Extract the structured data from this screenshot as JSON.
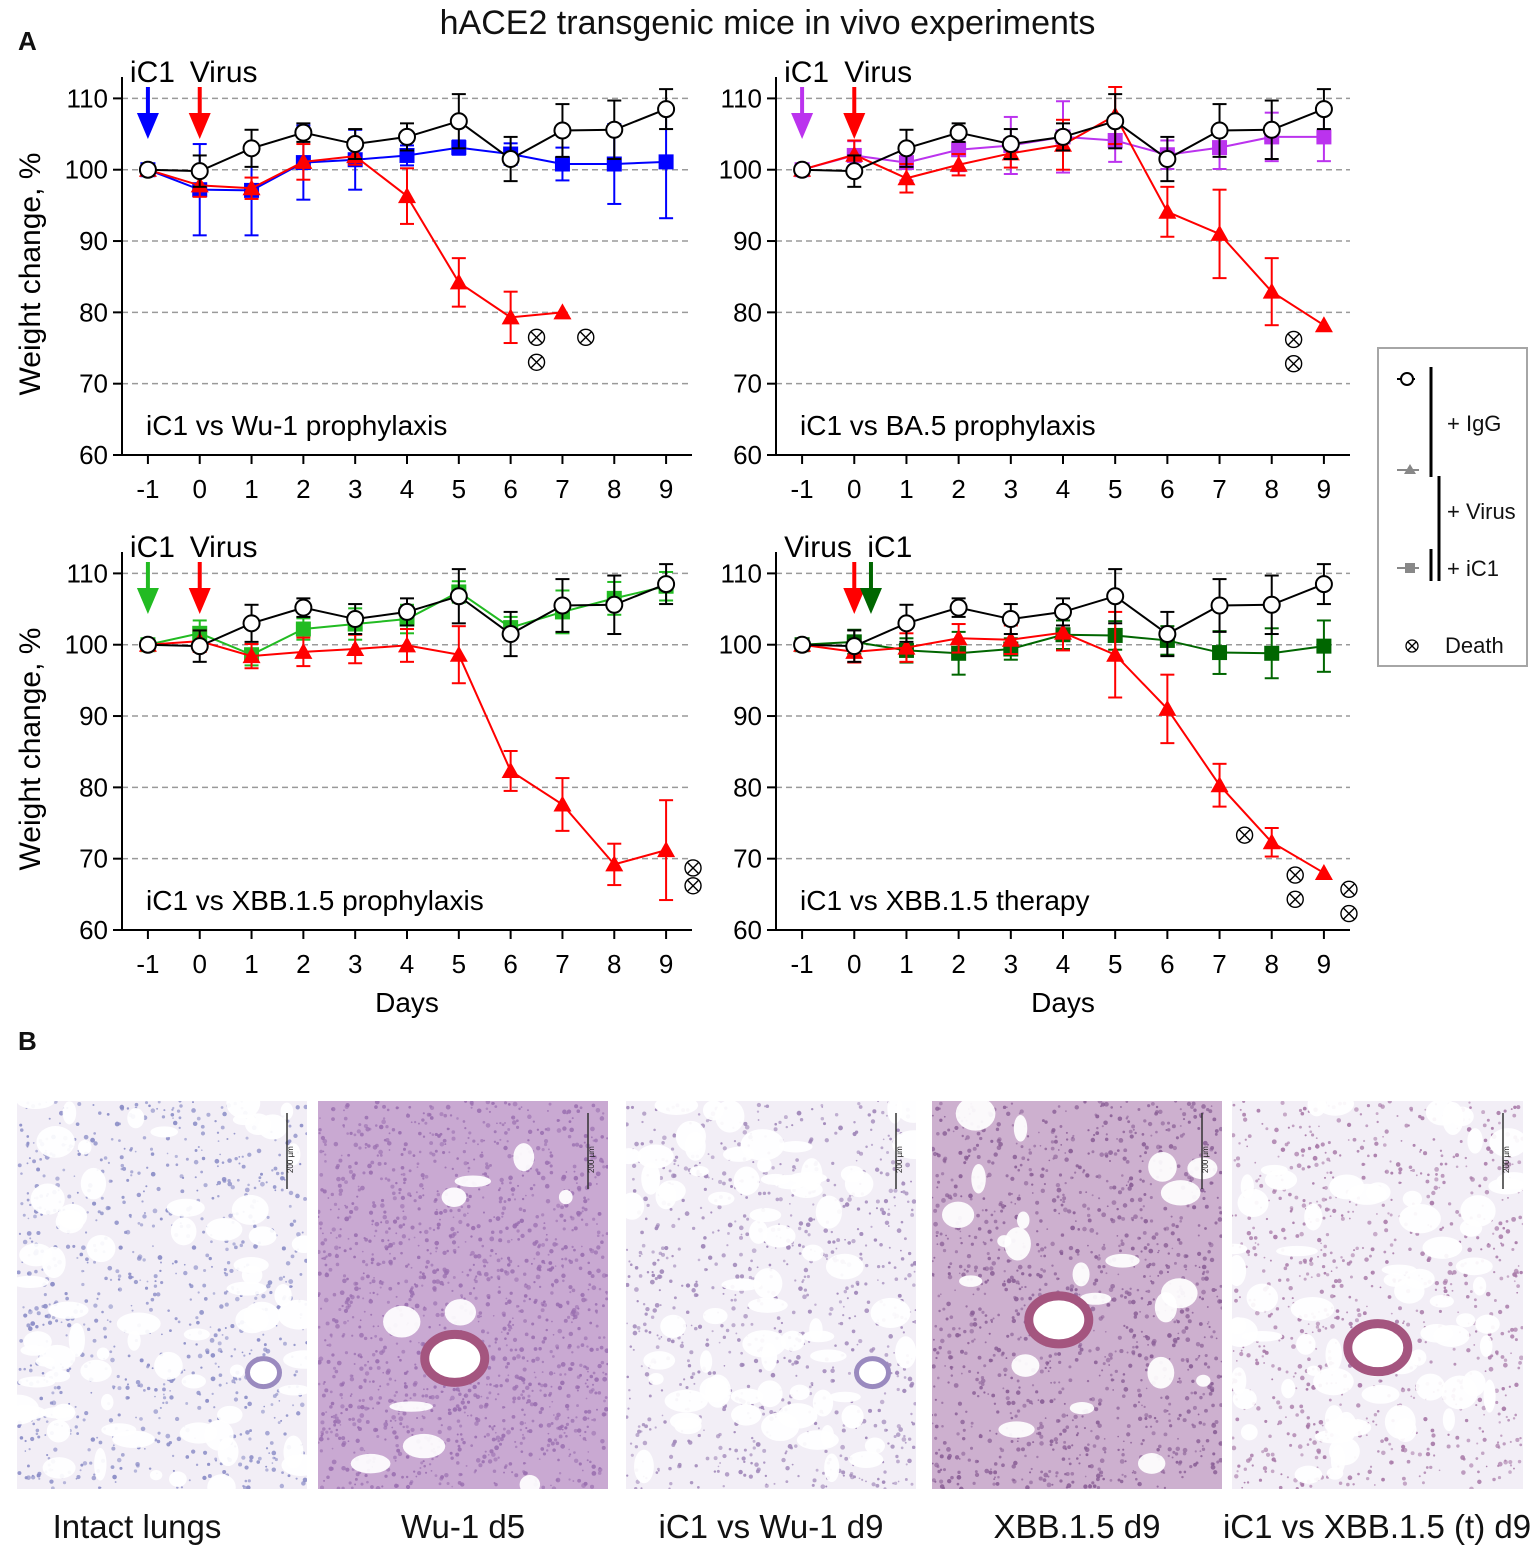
{
  "title": "hACE2 transgenic mice in vivo experiments",
  "panel_a_label": "A",
  "panel_b_label": "B",
  "colors": {
    "igg": "#000000",
    "virus": "#ff0000",
    "gridline": "#9a9a9a",
    "ic1_wu1": "#0000ff",
    "ic1_ba5": "#bb33ee",
    "ic1_xbb_prophylaxis": "#22bb22",
    "ic1_xbb_therapy": "#006600"
  },
  "legend": {
    "entries": [
      {
        "symbol": "open-circle",
        "label": "+ IgG"
      },
      {
        "symbol": "triangle",
        "label": "+ Virus"
      },
      {
        "symbol": "square",
        "label": "+ iC1"
      },
      {
        "symbol": "death-mark",
        "label": "Death"
      }
    ]
  },
  "chart_data": [
    {
      "type": "line",
      "name": "panel-top-left",
      "annotation": "iC1 vs Wu-1 prophylaxis",
      "top_labels": [
        "iC1",
        "Virus"
      ],
      "arrows": [
        {
          "day": -1,
          "color": "#0000ff"
        },
        {
          "day": 0,
          "color": "#ff0000"
        }
      ],
      "xlabel": "",
      "ylabel": "Weight change, %",
      "x": [
        -1,
        0,
        1,
        2,
        3,
        4,
        5,
        6,
        7,
        8,
        9
      ],
      "xlim": [
        -1.5,
        9.5
      ],
      "ylim": [
        60,
        113
      ],
      "yticks": [
        60,
        70,
        80,
        90,
        100,
        110
      ],
      "gridlines": [
        70,
        80,
        90,
        100,
        110
      ],
      "series": [
        {
          "name": "IgG",
          "marker": "circle",
          "color": "#000000",
          "values": [
            100,
            99.8,
            103,
            105.2,
            103.6,
            104.6,
            106.8,
            101.5,
            105.5,
            105.6,
            108.5
          ],
          "errors": [
            0.6,
            2.2,
            2.6,
            1.3,
            2.1,
            1.9,
            3.8,
            3.1,
            3.7,
            4.1,
            2.8
          ]
        },
        {
          "name": "iC1 + Virus",
          "marker": "square",
          "color": "#0000ff",
          "values": [
            100,
            97.2,
            97.1,
            101,
            101.4,
            102,
            103.1,
            102.2,
            100.8,
            100.8,
            101.1
          ],
          "errors": [
            0.6,
            6.4,
            6.3,
            5.2,
            4.2,
            1.4,
            1,
            1.5,
            2.3,
            5.6,
            7.9
          ]
        },
        {
          "name": "Virus",
          "marker": "triangle",
          "color": "#ff0000",
          "values": [
            100,
            97.8,
            97.4,
            101.1,
            101.9,
            96.3,
            84.2,
            79.3,
            80,
            null,
            null
          ],
          "errors": [
            0.5,
            1.6,
            1.5,
            2.5,
            1.2,
            3.9,
            3.4,
            3.6,
            0,
            null,
            null
          ]
        }
      ],
      "deaths": [
        {
          "day": 6.5,
          "y": 76.5
        },
        {
          "day": 6.5,
          "y": 73
        },
        {
          "day": 7.45,
          "y": 76.5
        }
      ]
    },
    {
      "type": "line",
      "name": "panel-top-right",
      "annotation": "iC1 vs BA.5 prophylaxis",
      "top_labels": [
        "iC1",
        "Virus"
      ],
      "arrows": [
        {
          "day": -1,
          "color": "#bb33ee"
        },
        {
          "day": 0,
          "color": "#ff0000"
        }
      ],
      "xlabel": "",
      "ylabel": "",
      "x": [
        -1,
        0,
        1,
        2,
        3,
        4,
        5,
        6,
        7,
        8,
        9
      ],
      "xlim": [
        -1.5,
        9.5
      ],
      "ylim": [
        60,
        113
      ],
      "yticks": [
        60,
        70,
        80,
        90,
        100,
        110
      ],
      "gridlines": [
        70,
        80,
        90,
        100,
        110
      ],
      "series": [
        {
          "name": "IgG",
          "marker": "circle",
          "color": "#000000",
          "values": [
            100,
            99.8,
            103,
            105.2,
            103.6,
            104.6,
            106.8,
            101.5,
            105.5,
            105.6,
            108.5
          ],
          "errors": [
            0.6,
            2.2,
            2.6,
            1.3,
            2.1,
            1.9,
            3.8,
            3.1,
            3.7,
            4.1,
            2.8
          ]
        },
        {
          "name": "iC1 + Virus",
          "marker": "square",
          "color": "#bb33ee",
          "values": [
            100,
            102,
            101,
            102.8,
            103.4,
            104.6,
            104.1,
            102.1,
            103.1,
            104.6,
            104.6
          ],
          "errors": [
            0.5,
            2,
            2.5,
            3,
            4,
            5,
            3,
            2,
            3,
            3.4,
            3.4
          ]
        },
        {
          "name": "Virus",
          "marker": "triangle",
          "color": "#ff0000",
          "values": [
            100,
            102.1,
            98.8,
            100.7,
            102.3,
            103.5,
            107.6,
            94.1,
            91,
            82.9,
            78.2
          ],
          "errors": [
            0.5,
            2,
            2,
            1.5,
            2,
            3.5,
            4,
            3.5,
            6.2,
            4.7,
            0
          ]
        }
      ],
      "deaths": [
        {
          "day": 8.42,
          "y": 76.2
        },
        {
          "day": 8.42,
          "y": 72.8
        }
      ]
    },
    {
      "type": "line",
      "name": "panel-bottom-left",
      "annotation": "iC1 vs XBB.1.5 prophylaxis",
      "top_labels": [
        "iC1",
        "Virus"
      ],
      "arrows": [
        {
          "day": -1,
          "color": "#22bb22"
        },
        {
          "day": 0,
          "color": "#ff0000"
        }
      ],
      "xlabel": "Days",
      "ylabel": "Weight change, %",
      "x": [
        -1,
        0,
        1,
        2,
        3,
        4,
        5,
        6,
        7,
        8,
        9
      ],
      "xlim": [
        -1.5,
        9.5
      ],
      "ylim": [
        60,
        113
      ],
      "yticks": [
        60,
        70,
        80,
        90,
        100,
        110
      ],
      "gridlines": [
        70,
        80,
        90,
        100,
        110
      ],
      "series": [
        {
          "name": "IgG",
          "marker": "circle",
          "color": "#000000",
          "values": [
            100,
            99.8,
            103,
            105.2,
            103.6,
            104.6,
            106.8,
            101.5,
            105.5,
            105.6,
            108.5
          ],
          "errors": [
            0.6,
            2.2,
            2.6,
            1.3,
            2.1,
            1.9,
            3.8,
            3.1,
            3.7,
            4.1,
            2.8
          ]
        },
        {
          "name": "iC1 + Virus",
          "marker": "square",
          "color": "#22bb22",
          "values": [
            100,
            101.6,
            98.6,
            102.2,
            102.9,
            103.6,
            107.4,
            102.4,
            104.6,
            106.5,
            108.2
          ],
          "errors": [
            0.5,
            1.8,
            1.5,
            1.5,
            2.2,
            2,
            1.5,
            1.5,
            3,
            2.3,
            2
          ]
        },
        {
          "name": "Virus",
          "marker": "triangle",
          "color": "#ff0000",
          "values": [
            100,
            100.5,
            98.4,
            99,
            99.4,
            99.9,
            98.6,
            82.3,
            77.6,
            69.2,
            71.2
          ],
          "errors": [
            0.5,
            1.5,
            1.7,
            2,
            2,
            2.3,
            4,
            2.8,
            3.7,
            2.9,
            7
          ]
        }
      ],
      "deaths": [
        {
          "day": 9.52,
          "y": 68.7
        },
        {
          "day": 9.52,
          "y": 66.2
        }
      ]
    },
    {
      "type": "line",
      "name": "panel-bottom-right",
      "annotation": "iC1 vs XBB.1.5 therapy",
      "top_labels": [
        "Virus",
        "iC1"
      ],
      "arrows": [
        {
          "day": 0,
          "color": "#ff0000"
        },
        {
          "day": 0.32,
          "color": "#006600"
        }
      ],
      "xlabel": "Days",
      "ylabel": "",
      "x": [
        -1,
        0,
        1,
        2,
        3,
        4,
        5,
        6,
        7,
        8,
        9
      ],
      "xlim": [
        -1.5,
        9.5
      ],
      "ylim": [
        60,
        113
      ],
      "yticks": [
        60,
        70,
        80,
        90,
        100,
        110
      ],
      "gridlines": [
        70,
        80,
        90,
        100,
        110
      ],
      "series": [
        {
          "name": "IgG",
          "marker": "circle",
          "color": "#000000",
          "values": [
            100,
            99.8,
            103,
            105.2,
            103.6,
            104.6,
            106.8,
            101.5,
            105.5,
            105.6,
            108.5
          ],
          "errors": [
            0.6,
            2.2,
            2.6,
            1.3,
            2.1,
            1.9,
            3.8,
            3.1,
            3.7,
            4.1,
            2.8
          ]
        },
        {
          "name": "iC1 + Virus",
          "marker": "square",
          "color": "#006600",
          "values": [
            100,
            100.4,
            99.2,
            98.8,
            99.4,
            101.4,
            101.3,
            100.6,
            98.9,
            98.8,
            99.8
          ],
          "errors": [
            0.5,
            1.7,
            1.7,
            3,
            1.5,
            2,
            2,
            2,
            3,
            3.5,
            3.6
          ]
        },
        {
          "name": "Virus",
          "marker": "triangle",
          "color": "#ff0000",
          "values": [
            100,
            99,
            99.6,
            100.9,
            100.7,
            101.7,
            98.6,
            91,
            80.3,
            72.3,
            68
          ]
        },
        {
          "name": "Virus-errors-only",
          "errors_for": "Virus",
          "errors": [
            0.5,
            1.5,
            2,
            2,
            2,
            2.5,
            6,
            4.8,
            3,
            2,
            0
          ]
        }
      ],
      "deaths": [
        {
          "day": 7.48,
          "y": 73.3
        },
        {
          "day": 8.45,
          "y": 67.7
        },
        {
          "day": 8.45,
          "y": 64.3
        },
        {
          "day": 9.48,
          "y": 65.7
        },
        {
          "day": 9.48,
          "y": 62.3
        }
      ]
    }
  ],
  "histology": {
    "scale_bar_label": "200 µm",
    "images": [
      {
        "caption": "Intact lungs",
        "style": "healthy",
        "tint": "#8a8cc6"
      },
      {
        "caption": "Wu-1 d5",
        "style": "inflamed",
        "tint": "#9a6fb0"
      },
      {
        "caption": "iC1 vs Wu-1 d9",
        "style": "healthy",
        "tint": "#9f86b8"
      },
      {
        "caption": "XBB.1.5 d9",
        "style": "dense",
        "tint": "#8a5f96"
      },
      {
        "caption": "iC1 vs XBB.1.5 (t) d9",
        "style": "healthy",
        "tint": "#a87aa8"
      }
    ]
  }
}
